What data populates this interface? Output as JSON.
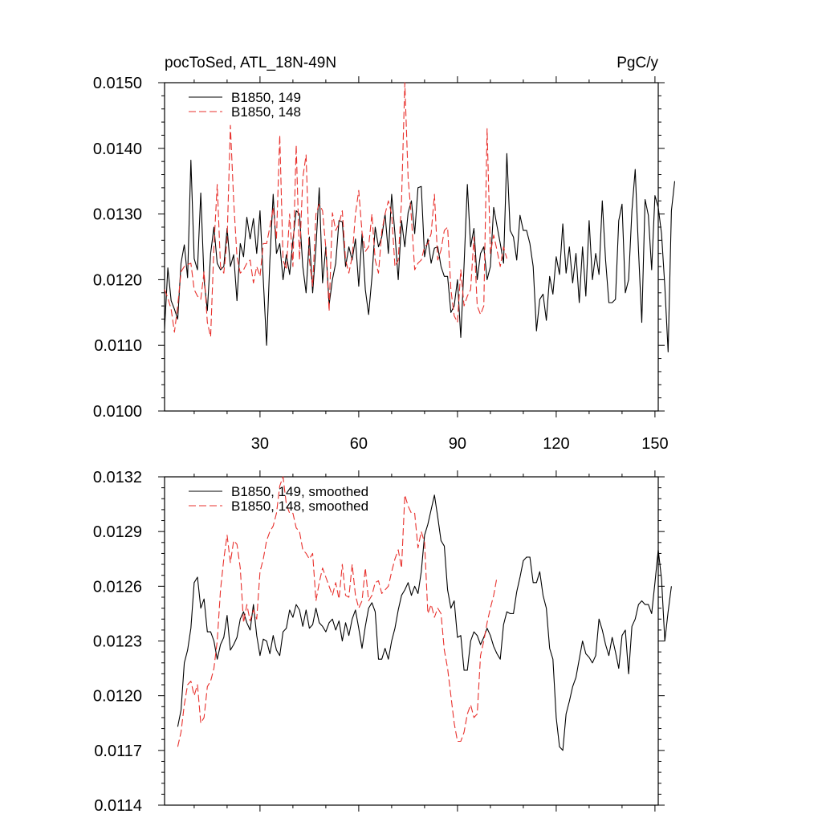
{
  "chart_data": [
    {
      "type": "line",
      "title": "pocToSed, ATL_18N-49N",
      "units_label": "PgC/y",
      "xlim": [
        1,
        151
      ],
      "ylim": [
        0.01,
        0.015
      ],
      "x_ticks": [
        30,
        60,
        90,
        120,
        150
      ],
      "x_tick_labels": [
        "30",
        "60",
        "90",
        "120",
        "150"
      ],
      "y_ticks": [
        0.01,
        0.011,
        0.012,
        0.013,
        0.014,
        0.015
      ],
      "y_tick_labels": [
        "0.0100",
        "0.0110",
        "0.0120",
        "0.0130",
        "0.0140",
        "0.0150"
      ],
      "legend_position": "top-left",
      "series": [
        {
          "name": "B1850, 149",
          "color": "#000000",
          "dash": "solid",
          "x_start": 1,
          "values": [
            0.01125,
            0.01218,
            0.01168,
            0.01155,
            0.0114,
            0.01225,
            0.01253,
            0.01203,
            0.01382,
            0.01232,
            0.01215,
            0.01332,
            0.012,
            0.01153,
            0.0124,
            0.0128,
            0.01225,
            0.01215,
            0.0122,
            0.01278,
            0.0122,
            0.01238,
            0.01168,
            0.01255,
            0.01235,
            0.01295,
            0.01262,
            0.01293,
            0.0124,
            0.01305,
            0.012,
            0.011,
            0.0123,
            0.0133,
            0.0124,
            0.01255,
            0.012,
            0.01238,
            0.01208,
            0.0126,
            0.01305,
            0.013,
            0.0122,
            0.0118,
            0.01265,
            0.0118,
            0.0125,
            0.0134,
            0.01195,
            0.0125,
            0.01162,
            0.012,
            0.01225,
            0.0129,
            0.01288,
            0.0122,
            0.0125,
            0.0123,
            0.01262,
            0.0119,
            0.0127,
            0.01185,
            0.01147,
            0.01203,
            0.0128,
            0.0125,
            0.01265,
            0.013,
            0.0124,
            0.0133,
            0.0127,
            0.012,
            0.0129,
            0.0125,
            0.01302,
            0.0132,
            0.0127,
            0.0134,
            0.01342,
            0.01235,
            0.01262,
            0.01225,
            0.01248,
            0.0125,
            0.0122,
            0.01205,
            0.01205,
            0.0115,
            0.0116,
            0.012,
            0.01112,
            0.01222,
            0.01345,
            0.0125,
            0.01278,
            0.012,
            0.0124,
            0.0125,
            0.012,
            0.0122,
            0.0131,
            0.01282,
            0.01255,
            0.01225,
            0.01392,
            0.01275,
            0.01265,
            0.0123,
            0.01298,
            0.01275,
            0.01275,
            0.01255,
            0.0122,
            0.01122,
            0.0117,
            0.01178,
            0.01138,
            0.01205,
            0.01178,
            0.01235,
            0.01208,
            0.01285,
            0.0121,
            0.0125,
            0.01195,
            0.0124,
            0.01165,
            0.0125,
            0.01175,
            0.0129,
            0.012,
            0.0124,
            0.01208,
            0.0132,
            0.0123,
            0.01165,
            0.01165,
            0.0117,
            0.0129,
            0.01315,
            0.0118,
            0.012,
            0.01305,
            0.01368,
            0.01245,
            0.01135,
            0.01322,
            0.01298,
            0.01215,
            0.01328,
            0.0131,
            0.0127,
            0.0119,
            0.0109,
            0.01305,
            0.0135
          ]
        },
        {
          "name": "B1850, 148",
          "color": "#e8302c",
          "dash": "dashed",
          "x_start": 1,
          "values": [
            0.01185,
            0.01172,
            0.01155,
            0.0112,
            0.0116,
            0.01212,
            0.0122,
            0.01223,
            0.01225,
            0.01185,
            0.01175,
            0.0117,
            0.01212,
            0.01135,
            0.01113,
            0.0125,
            0.01345,
            0.0122,
            0.0121,
            0.0126,
            0.01435,
            0.0132,
            0.01235,
            0.0121,
            0.01215,
            0.01225,
            0.0123,
            0.01195,
            0.0122,
            0.01205,
            0.01255,
            0.01255,
            0.0128,
            0.0131,
            0.01262,
            0.0142,
            0.0123,
            0.01215,
            0.013,
            0.0122,
            0.01405,
            0.0123,
            0.01355,
            0.0139,
            0.0123,
            0.0119,
            0.013,
            0.01315,
            0.01305,
            0.01248,
            0.01152,
            0.01302,
            0.01275,
            0.01285,
            0.01305,
            0.0123,
            0.0121,
            0.01235,
            0.013,
            0.01336,
            0.01272,
            0.01243,
            0.0125,
            0.013,
            0.0123,
            0.0121,
            0.01273,
            0.013,
            0.0132,
            0.013,
            0.0122,
            0.0123,
            0.0132,
            0.015,
            0.01355,
            0.01295,
            0.01215,
            0.01225,
            0.0123,
            0.0125,
            0.01255,
            0.0127,
            0.0133,
            0.0123,
            0.01245,
            0.01275,
            0.0128,
            0.01185,
            0.01145,
            0.01135,
            0.01215,
            0.0116,
            0.01175,
            0.01185,
            0.01265,
            0.0116,
            0.01147,
            0.0116,
            0.0143,
            0.0124,
            0.01268,
            0.01245,
            0.0122,
            0.0125,
            0.01232
          ]
        }
      ]
    },
    {
      "type": "line",
      "xlim": [
        1,
        151
      ],
      "ylim": [
        0.0114,
        0.0132
      ],
      "y_ticks": [
        0.0114,
        0.0117,
        0.012,
        0.0123,
        0.0126,
        0.0129,
        0.0132
      ],
      "y_tick_labels": [
        "0.0114",
        "0.0117",
        "0.0120",
        "0.0123",
        "0.0126",
        "0.0129",
        "0.0132"
      ],
      "legend_position": "top-left",
      "series": [
        {
          "name": "B1850, 149, smoothed",
          "color": "#000000",
          "dash": "solid",
          "x_start": 5,
          "values": [
            0.01183,
            0.01192,
            0.01218,
            0.01225,
            0.01237,
            0.01262,
            0.01265,
            0.01248,
            0.01253,
            0.01235,
            0.01235,
            0.0123,
            0.0122,
            0.01228,
            0.01232,
            0.01244,
            0.01225,
            0.01228,
            0.01232,
            0.01242,
            0.01246,
            0.0124,
            0.01236,
            0.0125,
            0.01233,
            0.01222,
            0.01231,
            0.0123,
            0.01223,
            0.01233,
            0.01225,
            0.01222,
            0.01235,
            0.01237,
            0.01247,
            0.01243,
            0.0125,
            0.01247,
            0.01238,
            0.01247,
            0.01237,
            0.01239,
            0.01248,
            0.0124,
            0.01238,
            0.01235,
            0.0124,
            0.01242,
            0.01236,
            0.01241,
            0.0123,
            0.0124,
            0.01233,
            0.01242,
            0.01247,
            0.01237,
            0.01226,
            0.01238,
            0.01248,
            0.01251,
            0.01246,
            0.0122,
            0.0122,
            0.01226,
            0.0122,
            0.0123,
            0.01237,
            0.01247,
            0.01255,
            0.01258,
            0.01262,
            0.01255,
            0.0126,
            0.01256,
            0.01268,
            0.01288,
            0.01294,
            0.01302,
            0.0131,
            0.01298,
            0.01285,
            0.01282,
            0.01258,
            0.01248,
            0.01252,
            0.01232,
            0.01233,
            0.01214,
            0.01214,
            0.0123,
            0.01235,
            0.01233,
            0.01228,
            0.01232,
            0.01237,
            0.01233,
            0.01227,
            0.01223,
            0.0122,
            0.01239,
            0.01246,
            0.01245,
            0.01245,
            0.01257,
            0.01265,
            0.01274,
            0.01276,
            0.01276,
            0.01262,
            0.01262,
            0.01268,
            0.01255,
            0.01248,
            0.01226,
            0.0122,
            0.01188,
            0.01172,
            0.0117,
            0.0119,
            0.01197,
            0.01205,
            0.0121,
            0.0122,
            0.0123,
            0.01223,
            0.01221,
            0.01218,
            0.01222,
            0.01242,
            0.01236,
            0.01228,
            0.01222,
            0.01232,
            0.01224,
            0.01215,
            0.01233,
            0.01236,
            0.01212,
            0.01238,
            0.01242,
            0.0125,
            0.01252,
            0.0125,
            0.0125,
            0.01245,
            0.01262,
            0.0128,
            0.01264,
            0.0123,
            0.01246,
            0.0126
          ]
        },
        {
          "name": "B1850, 148, smoothed",
          "color": "#e8302c",
          "dash": "dashed",
          "x_start": 5,
          "values": [
            0.01172,
            0.0118,
            0.01195,
            0.01206,
            0.01208,
            0.012,
            0.01206,
            0.01185,
            0.01188,
            0.01205,
            0.01208,
            0.01215,
            0.0123,
            0.01258,
            0.01275,
            0.01288,
            0.01273,
            0.01285,
            0.01283,
            0.0127,
            0.0124,
            0.0125,
            0.01241,
            0.01247,
            0.01242,
            0.01268,
            0.01275,
            0.01285,
            0.0129,
            0.01293,
            0.013,
            0.01315,
            0.0132,
            0.01305,
            0.013,
            0.013,
            0.01292,
            0.0129,
            0.0128,
            0.01278,
            0.01275,
            0.01278,
            0.01252,
            0.01262,
            0.0127,
            0.01265,
            0.0126,
            0.01255,
            0.01262,
            0.01253,
            0.01272,
            0.01255,
            0.01254,
            0.01272,
            0.01255,
            0.01248,
            0.01252,
            0.0127,
            0.01252,
            0.01255,
            0.01262,
            0.01263,
            0.01256,
            0.01258,
            0.0126,
            0.01268,
            0.01275,
            0.0128,
            0.0127,
            0.0131,
            0.01304,
            0.013,
            0.013,
            0.01281,
            0.0129,
            0.01284,
            0.01245,
            0.0125,
            0.01243,
            0.01248,
            0.01245,
            0.01225,
            0.01215,
            0.012,
            0.01185,
            0.01175,
            0.01175,
            0.0118,
            0.0119,
            0.01195,
            0.01188,
            0.0119,
            0.01222,
            0.0123,
            0.0124,
            0.01248,
            0.01255,
            0.01265
          ]
        }
      ]
    }
  ]
}
